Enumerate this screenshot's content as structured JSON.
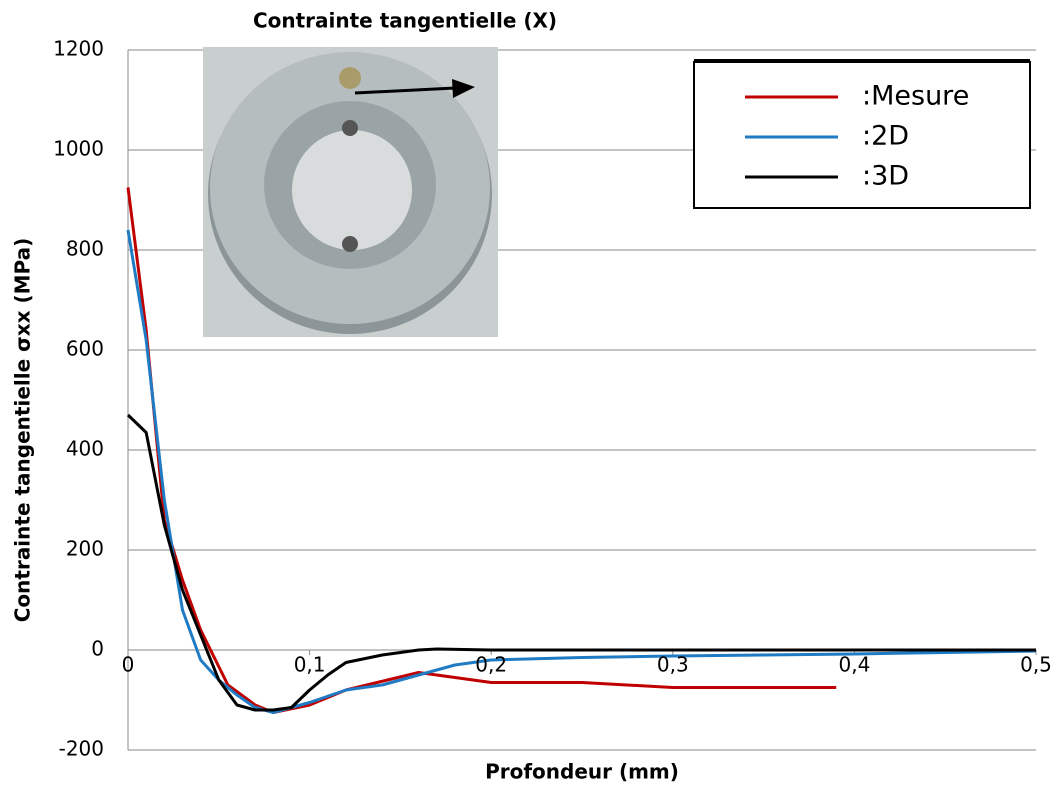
{
  "chart_data": {
    "type": "line",
    "title": "Contrainte tangentielle (X)",
    "x_label": "Profondeur (mm)",
    "y_label": "Contrainte tangentielle σxx (MPa)",
    "xlim": [
      0,
      0.5
    ],
    "xticks": [
      0,
      {
        "value": 0.1,
        "label": "0,1"
      },
      {
        "value": 0.2,
        "label": "0,2"
      },
      {
        "value": 0.3,
        "label": "0,3"
      },
      {
        "value": 0.4,
        "label": "0,4"
      },
      {
        "value": 0.5,
        "label": "0,5"
      }
    ],
    "ylim": [
      -200,
      1200
    ],
    "yticks": [
      -200,
      0,
      200,
      400,
      600,
      800,
      1000,
      1200
    ],
    "grid": true,
    "legend": "upper right",
    "series": [
      {
        "name": ":Mesure",
        "color": "#c00000",
        "x": [
          0,
          0.01,
          0.02,
          0.03,
          0.04,
          0.055,
          0.07,
          0.08,
          0.1,
          0.12,
          0.16,
          0.2,
          0.25,
          0.3,
          0.35,
          0.39
        ],
        "values": [
          925,
          640,
          260,
          140,
          40,
          -70,
          -110,
          -125,
          -110,
          -80,
          -45,
          -65,
          -65,
          -75,
          -75,
          -75
        ]
      },
      {
        "name": ":2D",
        "color": "#1f7bc4",
        "x": [
          0,
          0.01,
          0.02,
          0.03,
          0.04,
          0.05,
          0.06,
          0.07,
          0.08,
          0.09,
          0.1,
          0.12,
          0.14,
          0.16,
          0.18,
          0.2,
          0.25,
          0.3,
          0.35,
          0.4,
          0.45,
          0.5
        ],
        "values": [
          840,
          620,
          300,
          80,
          -20,
          -60,
          -90,
          -115,
          -125,
          -115,
          -105,
          -80,
          -70,
          -50,
          -30,
          -20,
          -15,
          -12,
          -10,
          -8,
          -5,
          -2
        ]
      },
      {
        "name": ":3D",
        "color": "#000000",
        "x": [
          0,
          0.01,
          0.02,
          0.03,
          0.04,
          0.05,
          0.06,
          0.07,
          0.08,
          0.09,
          0.1,
          0.11,
          0.12,
          0.14,
          0.16,
          0.17,
          0.2,
          0.3,
          0.4,
          0.5
        ],
        "values": [
          470,
          435,
          250,
          120,
          30,
          -60,
          -110,
          -120,
          -120,
          -115,
          -80,
          -50,
          -25,
          -10,
          0,
          2,
          0,
          0,
          0,
          0
        ]
      }
    ]
  }
}
